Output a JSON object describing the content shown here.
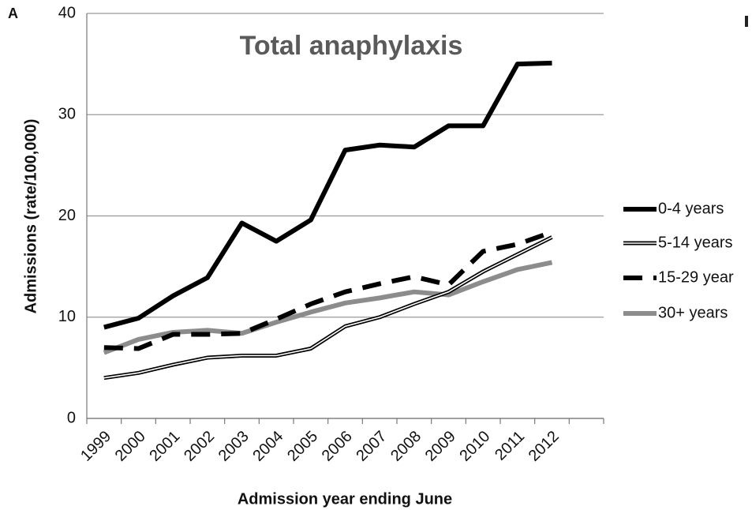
{
  "panel_label": "A",
  "chart_data": {
    "type": "line",
    "title": "Total anaphylaxis",
    "x_label": "Admission year ending June",
    "y_label": "Admissions (rate/100,000)",
    "categories": [
      "1999",
      "2000",
      "2001",
      "2002",
      "2003",
      "2004",
      "2005",
      "2006",
      "2007",
      "2008",
      "2009",
      "2010",
      "2011",
      "2012",
      null
    ],
    "series": [
      {
        "name": "0-4 years",
        "color": "#000000",
        "line_style": "solid",
        "values": [
          9.0,
          9.9,
          12.1,
          13.9,
          19.3,
          17.5,
          19.6,
          26.5,
          27.0,
          26.8,
          28.9,
          28.9,
          35.0,
          35.1,
          null
        ]
      },
      {
        "name": "5-14 years",
        "color": "#000000",
        "line_style": "double",
        "values": [
          4.0,
          4.5,
          5.3,
          6.0,
          6.2,
          6.2,
          6.9,
          9.1,
          10.0,
          11.3,
          12.5,
          14.5,
          16.2,
          17.9,
          null
        ]
      },
      {
        "name": "15-29 year",
        "color": "#000000",
        "line_style": "dashed",
        "values": [
          7.0,
          6.9,
          8.3,
          8.3,
          8.4,
          9.8,
          11.3,
          12.5,
          13.3,
          14.0,
          13.2,
          16.5,
          17.2,
          18.4,
          null
        ]
      },
      {
        "name": "30+ years",
        "color": "#8c8c8c",
        "line_style": "solid",
        "values": [
          6.5,
          7.8,
          8.5,
          8.7,
          8.4,
          9.5,
          10.5,
          11.4,
          11.9,
          12.5,
          12.2,
          13.5,
          14.7,
          15.4,
          null
        ]
      }
    ],
    "ylim": [
      0,
      40
    ],
    "yticks": [
      0,
      10,
      20,
      30,
      40
    ],
    "grid": true,
    "legend": "right"
  }
}
